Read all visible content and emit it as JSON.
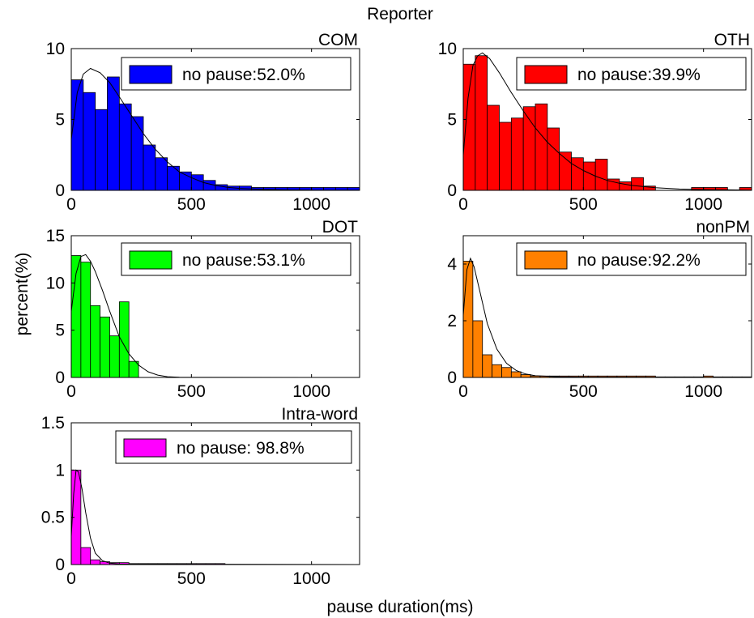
{
  "figure": {
    "title": "Reporter",
    "xlabel": "pause duration(ms)",
    "ylabel": "percent(%)"
  },
  "chart_data": [
    {
      "type": "bar",
      "title": "COM",
      "color": "#0000ff",
      "legend": "no pause:52.0%",
      "legend_placement": "top-right",
      "xlim": [
        0,
        1200
      ],
      "ylim": [
        0,
        10
      ],
      "xticks": [
        0,
        500,
        1000
      ],
      "yticks": [
        0,
        5,
        10
      ],
      "bin_width": 50,
      "x": [
        25,
        75,
        125,
        175,
        225,
        275,
        325,
        375,
        425,
        475,
        525,
        575,
        625,
        675,
        725,
        775,
        825,
        875,
        925,
        975,
        1025,
        1075,
        1125,
        1175
      ],
      "values": [
        7.8,
        6.9,
        5.7,
        8.0,
        6.1,
        5.2,
        3.2,
        2.3,
        1.7,
        1.3,
        1.1,
        0.7,
        0.4,
        0.3,
        0.3,
        0.2,
        0.2,
        0.2,
        0.2,
        0.2,
        0.2,
        0.2,
        0.2,
        0.2
      ],
      "fit_curve": [
        [
          0,
          3.6
        ],
        [
          25,
          6.9
        ],
        [
          50,
          8.2
        ],
        [
          80,
          8.6
        ],
        [
          120,
          8.3
        ],
        [
          160,
          7.6
        ],
        [
          200,
          6.6
        ],
        [
          250,
          5.3
        ],
        [
          300,
          4.0
        ],
        [
          350,
          2.9
        ],
        [
          400,
          2.0
        ],
        [
          450,
          1.3
        ],
        [
          500,
          0.9
        ],
        [
          550,
          0.55
        ],
        [
          600,
          0.35
        ],
        [
          650,
          0.22
        ],
        [
          700,
          0.14
        ],
        [
          800,
          0.06
        ],
        [
          900,
          0.03
        ],
        [
          1000,
          0.015
        ],
        [
          1200,
          0.01
        ]
      ]
    },
    {
      "type": "bar",
      "title": "OTH",
      "color": "#ff0000",
      "legend": "no pause:39.9%",
      "legend_placement": "top-right",
      "xlim": [
        0,
        1200
      ],
      "ylim": [
        0,
        10
      ],
      "xticks": [
        0,
        500,
        1000
      ],
      "yticks": [
        0,
        5,
        10
      ],
      "bin_width": 50,
      "x": [
        25,
        75,
        125,
        175,
        225,
        275,
        325,
        375,
        425,
        475,
        525,
        575,
        625,
        675,
        725,
        775,
        825,
        875,
        925,
        975,
        1025,
        1075,
        1125,
        1175
      ],
      "values": [
        8.9,
        9.5,
        6.0,
        4.8,
        5.1,
        5.9,
        6.1,
        4.4,
        2.7,
        2.3,
        2.0,
        2.2,
        0.8,
        0.6,
        0.9,
        0.3,
        0.0,
        0.0,
        0.0,
        0.2,
        0.2,
        0.2,
        0.0,
        0.2
      ],
      "fit_curve": [
        [
          0,
          2.5
        ],
        [
          20,
          6.5
        ],
        [
          40,
          8.8
        ],
        [
          60,
          9.5
        ],
        [
          80,
          9.7
        ],
        [
          110,
          9.3
        ],
        [
          150,
          8.3
        ],
        [
          200,
          6.9
        ],
        [
          250,
          5.6
        ],
        [
          300,
          4.4
        ],
        [
          350,
          3.4
        ],
        [
          400,
          2.6
        ],
        [
          450,
          1.9
        ],
        [
          500,
          1.4
        ],
        [
          550,
          1.0
        ],
        [
          600,
          0.7
        ],
        [
          650,
          0.5
        ],
        [
          700,
          0.35
        ],
        [
          800,
          0.18
        ],
        [
          900,
          0.09
        ],
        [
          1000,
          0.05
        ],
        [
          1200,
          0.02
        ]
      ]
    },
    {
      "type": "bar",
      "title": "DOT",
      "color": "#00ff00",
      "legend": "no pause:53.1%",
      "legend_placement": "top-right",
      "xlim": [
        0,
        1200
      ],
      "ylim": [
        0,
        15
      ],
      "xticks": [
        0,
        500,
        1000
      ],
      "yticks": [
        0,
        5,
        10,
        15
      ],
      "bin_width": 40,
      "x": [
        20,
        60,
        100,
        140,
        180,
        220,
        260
      ],
      "values": [
        12.9,
        12.2,
        7.6,
        6.4,
        4.4,
        8.0,
        1.7
      ],
      "fit_curve": [
        [
          0,
          7.0
        ],
        [
          20,
          11.0
        ],
        [
          40,
          12.8
        ],
        [
          60,
          13.0
        ],
        [
          80,
          12.3
        ],
        [
          100,
          11.2
        ],
        [
          130,
          9.2
        ],
        [
          160,
          7.0
        ],
        [
          200,
          4.3
        ],
        [
          240,
          2.5
        ],
        [
          280,
          1.3
        ],
        [
          320,
          0.6
        ],
        [
          360,
          0.25
        ],
        [
          400,
          0.08
        ],
        [
          450,
          0.02
        ],
        [
          500,
          0.01
        ],
        [
          1200,
          0.0
        ]
      ]
    },
    {
      "type": "bar",
      "title": "nonPM",
      "color": "#ff8000",
      "legend": "no pause:92.2%",
      "legend_placement": "top-right",
      "xlim": [
        0,
        1200
      ],
      "ylim": [
        0,
        5
      ],
      "xticks": [
        0,
        500,
        1000
      ],
      "yticks": [
        0,
        2,
        4
      ],
      "bin_width": 40,
      "x": [
        20,
        60,
        100,
        140,
        180,
        220,
        260,
        300,
        340,
        380,
        420,
        460,
        500,
        540,
        580,
        620,
        660,
        700,
        740,
        780,
        820,
        860,
        900,
        940,
        980,
        1020,
        1060,
        1100,
        1140,
        1180
      ],
      "values": [
        4.1,
        2.0,
        0.8,
        0.45,
        0.35,
        0.2,
        0.1,
        0.05,
        0.05,
        0.05,
        0.05,
        0.05,
        0.05,
        0.05,
        0.05,
        0.05,
        0.05,
        0.05,
        0.05,
        0.05,
        0.02,
        0.02,
        0.02,
        0.02,
        0.02,
        0.05,
        0.02,
        0.02,
        0.02,
        0.02
      ],
      "fit_curve": [
        [
          0,
          2.2
        ],
        [
          15,
          3.8
        ],
        [
          30,
          4.2
        ],
        [
          45,
          3.9
        ],
        [
          70,
          3.0
        ],
        [
          100,
          1.9
        ],
        [
          140,
          1.0
        ],
        [
          180,
          0.5
        ],
        [
          220,
          0.25
        ],
        [
          260,
          0.12
        ],
        [
          300,
          0.06
        ],
        [
          400,
          0.02
        ],
        [
          500,
          0.01
        ],
        [
          1200,
          0.0
        ]
      ]
    },
    {
      "type": "bar",
      "title": "Intra-word",
      "color": "#ff00ff",
      "legend": "no pause: 98.8%",
      "legend_placement": "top-right",
      "xlim": [
        0,
        1200
      ],
      "ylim": [
        0,
        1.5
      ],
      "xticks": [
        0,
        500,
        1000
      ],
      "yticks": [
        0,
        0.5,
        1,
        1.5
      ],
      "bin_width": 40,
      "x": [
        20,
        60,
        100,
        140,
        180,
        220,
        260,
        300,
        340,
        380,
        420,
        460,
        500,
        540,
        580,
        620
      ],
      "values": [
        1.0,
        0.18,
        0.05,
        0.03,
        0.02,
        0.02,
        0.01,
        0.01,
        0.01,
        0.01,
        0.01,
        0.01,
        0.01,
        0.01,
        0.01,
        0.01
      ],
      "fit_curve": [
        [
          0,
          0.3
        ],
        [
          10,
          0.75
        ],
        [
          20,
          1.0
        ],
        [
          30,
          0.98
        ],
        [
          45,
          0.8
        ],
        [
          60,
          0.55
        ],
        [
          80,
          0.28
        ],
        [
          100,
          0.12
        ],
        [
          130,
          0.04
        ],
        [
          160,
          0.015
        ],
        [
          200,
          0.005
        ],
        [
          1200,
          0.0
        ]
      ]
    }
  ]
}
